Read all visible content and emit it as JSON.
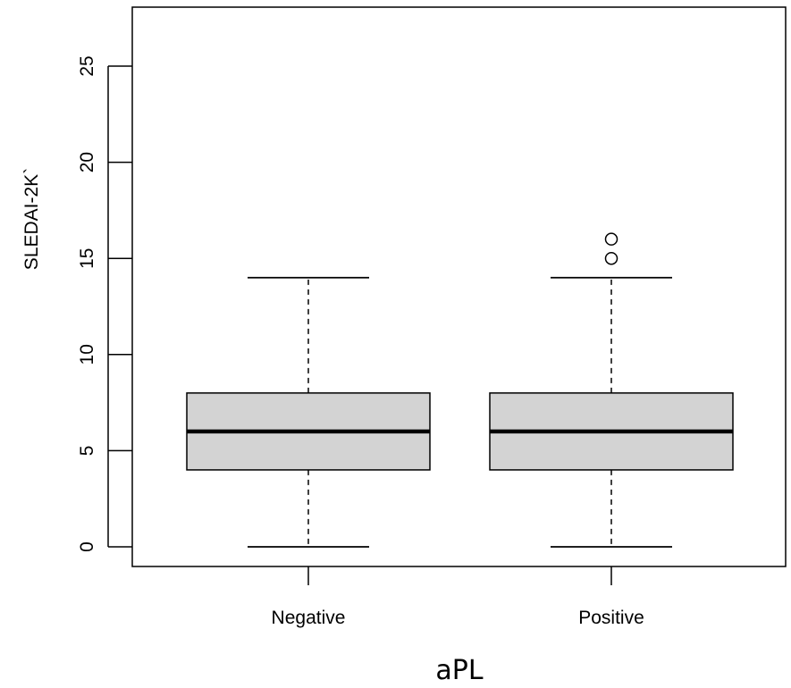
{
  "chart_data": {
    "type": "boxplot",
    "title": "",
    "xlabel": "aPL",
    "ylabel": "SLEDAI-2K`",
    "categories": [
      "Negative",
      "Positive"
    ],
    "ylim": [
      -1.1,
      28
    ],
    "yticks": [
      0,
      5,
      10,
      15,
      20,
      25
    ],
    "grid": false,
    "legend": "none",
    "box_fill": "#d3d3d3",
    "line_color": "#000000",
    "series": [
      {
        "category": "Negative",
        "whisker_low": 0,
        "q1": 4,
        "median": 6,
        "q3": 8,
        "whisker_high": 14,
        "outliers": []
      },
      {
        "category": "Positive",
        "whisker_low": 0,
        "q1": 4,
        "median": 6,
        "q3": 8,
        "whisker_high": 14,
        "outliers": [
          15,
          16
        ]
      }
    ]
  }
}
